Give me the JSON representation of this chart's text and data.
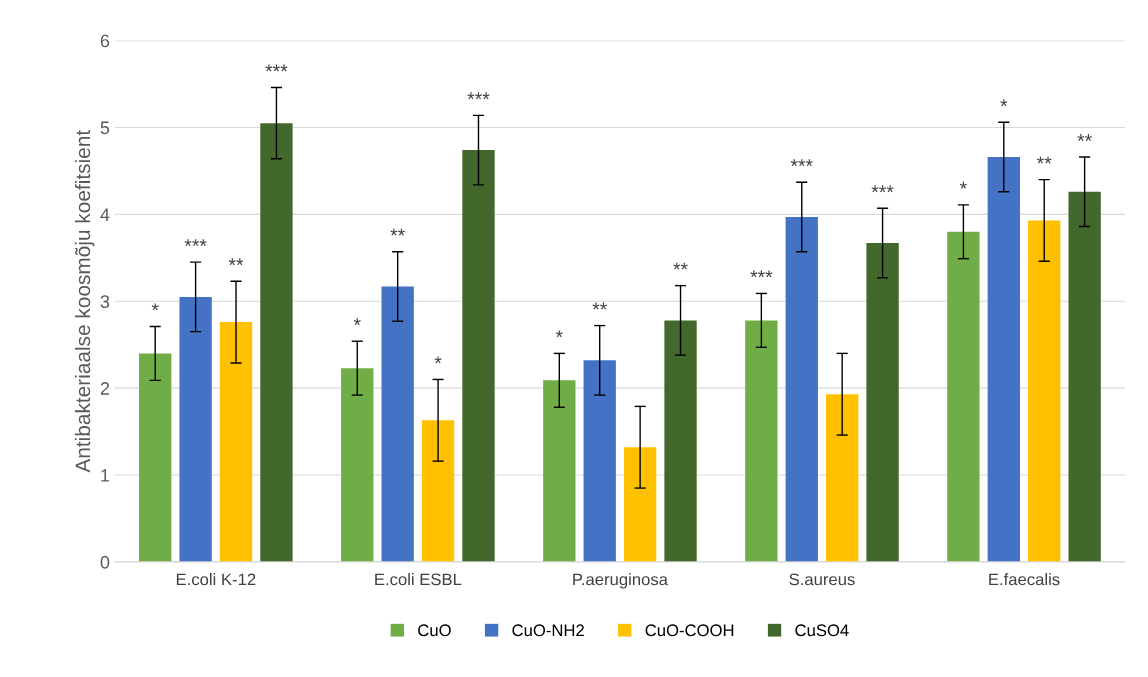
{
  "chart_data": {
    "type": "bar",
    "ylabel": "Antibakteriaalse koosmõju koefitsient",
    "categories": [
      "E.coli K-12",
      "E.coli ESBL",
      "P.aeruginosa",
      "S.aureus",
      "E.faecalis"
    ],
    "series": [
      {
        "name": "CuO",
        "color": "#70ad47",
        "values": [
          2.4,
          2.23,
          2.09,
          2.78,
          3.8
        ],
        "errors": [
          0.31,
          0.31,
          0.31,
          0.31,
          0.31
        ],
        "value_labels": [
          "*",
          "*",
          "*",
          "***",
          "*"
        ]
      },
      {
        "name": "CuO-NH2",
        "color": "#4472c4",
        "values": [
          3.05,
          3.17,
          2.32,
          3.97,
          4.66
        ],
        "errors": [
          0.4,
          0.4,
          0.4,
          0.4,
          0.4
        ],
        "value_labels": [
          "***",
          "**",
          "**",
          "***",
          "*"
        ]
      },
      {
        "name": "CuO-COOH",
        "color": "#ffc000",
        "values": [
          2.76,
          1.63,
          1.32,
          1.93,
          3.93
        ],
        "errors": [
          0.47,
          0.47,
          0.47,
          0.47,
          0.47
        ],
        "value_labels": [
          "**",
          "*",
          null,
          null,
          "**"
        ]
      },
      {
        "name": "CuSO4",
        "color": "#43682b",
        "values": [
          5.05,
          4.74,
          2.78,
          3.67,
          4.26
        ],
        "errors": [
          0.41,
          0.4,
          0.4,
          0.4,
          0.4
        ],
        "value_labels": [
          "***",
          "***",
          "**",
          "***",
          "**"
        ]
      }
    ],
    "ylim": [
      0,
      6
    ],
    "yticks": [
      0,
      1,
      2,
      3,
      4,
      5,
      6
    ],
    "grid": "y",
    "legend": "bottom"
  }
}
